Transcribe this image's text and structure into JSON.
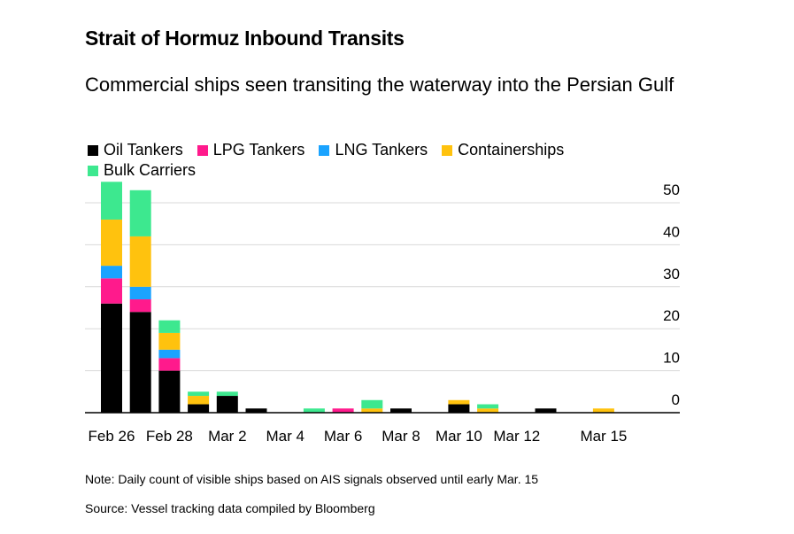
{
  "title": "Strait of Hormuz Inbound Transits",
  "subtitle": "Commercial ships seen transiting the waterway into the Persian Gulf",
  "note": "Note: Daily count of visible ships based on AIS signals observed until early Mar. 15",
  "source": "Source: Vessel tracking data compiled by Bloomberg",
  "colors": {
    "oil_tankers": "#000000",
    "lpg_tankers": "#ff1a8c",
    "lng_tankers": "#1aa3ff",
    "containerships": "#ffc20e",
    "bulk_carriers": "#3de88f",
    "gridline": "#d9d9d9",
    "axis": "#000000"
  },
  "chart_data": {
    "type": "bar",
    "stacked": true,
    "categories": [
      "Feb 26",
      "Feb 27",
      "Feb 28",
      "Mar 1",
      "Mar 2",
      "Mar 3",
      "Mar 4",
      "Mar 5",
      "Mar 6",
      "Mar 7",
      "Mar 8",
      "Mar 9",
      "Mar 10",
      "Mar 11",
      "Mar 12",
      "Mar 13",
      "Mar 14",
      "Mar 15"
    ],
    "x_tick_labels": [
      "Feb 26",
      "Feb 28",
      "Mar 2",
      "Mar 4",
      "Mar 6",
      "Mar 8",
      "Mar 10",
      "Mar 12",
      "Mar 15"
    ],
    "x_tick_categories": [
      "Feb 26",
      "Feb 28",
      "Mar 2",
      "Mar 4",
      "Mar 6",
      "Mar 8",
      "Mar 10",
      "Mar 12",
      "Mar 15"
    ],
    "series": [
      {
        "name": "Oil Tankers",
        "color_key": "oil_tankers",
        "values": [
          26,
          24,
          10,
          2,
          4,
          1,
          0,
          0,
          0,
          0,
          1,
          0,
          2,
          0,
          0,
          1,
          0,
          0
        ]
      },
      {
        "name": "LPG Tankers",
        "color_key": "lpg_tankers",
        "values": [
          6,
          3,
          3,
          0,
          0,
          0,
          0,
          0,
          1,
          0,
          0,
          0,
          0,
          0,
          0,
          0,
          0,
          0
        ]
      },
      {
        "name": "LNG Tankers",
        "color_key": "lng_tankers",
        "values": [
          3,
          3,
          2,
          0,
          0,
          0,
          0,
          0,
          0,
          0,
          0,
          0,
          0,
          0,
          0,
          0,
          0,
          0
        ]
      },
      {
        "name": "Containerships",
        "color_key": "containerships",
        "values": [
          11,
          12,
          4,
          2,
          0,
          0,
          0,
          0,
          0,
          1,
          0,
          0,
          1,
          1,
          0,
          0,
          0,
          1
        ]
      },
      {
        "name": "Bulk Carriers",
        "color_key": "bulk_carriers",
        "values": [
          9,
          11,
          3,
          1,
          1,
          0,
          0,
          1,
          0,
          2,
          0,
          0,
          0,
          1,
          0,
          0,
          0,
          0
        ]
      }
    ],
    "y_ticks": [
      0,
      10,
      20,
      30,
      40,
      50
    ],
    "ylim": [
      0,
      55
    ],
    "y_axis_side": "right",
    "grid": true,
    "legend_position": "top-left"
  }
}
